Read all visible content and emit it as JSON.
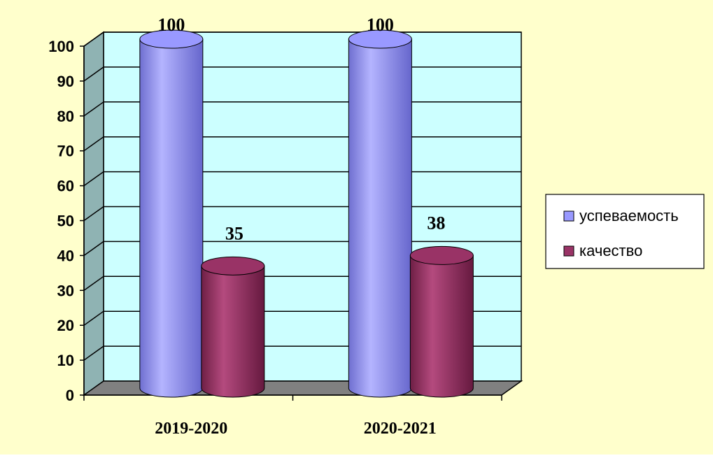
{
  "chart_data": {
    "type": "bar",
    "style": "3d-cylinder",
    "categories": [
      "2019-2020",
      "2020-2021"
    ],
    "series": [
      {
        "name": "успеваемость",
        "values": [
          100,
          100
        ],
        "color": "#9999ff"
      },
      {
        "name": "качество",
        "values": [
          35,
          38
        ],
        "color": "#993366"
      }
    ],
    "data_labels": [
      "100",
      "35",
      "100",
      "38"
    ],
    "ylim": [
      0,
      100
    ],
    "yticks": [
      0,
      10,
      20,
      30,
      40,
      50,
      60,
      70,
      80,
      90,
      100
    ],
    "grid": true,
    "legend_position": "right",
    "colors": {
      "page_background": "#ffffcc",
      "back_wall": "#ccffff",
      "side_wall": "#8fb3b3",
      "floor": "#808080",
      "legend_background": "#ffffff"
    }
  }
}
